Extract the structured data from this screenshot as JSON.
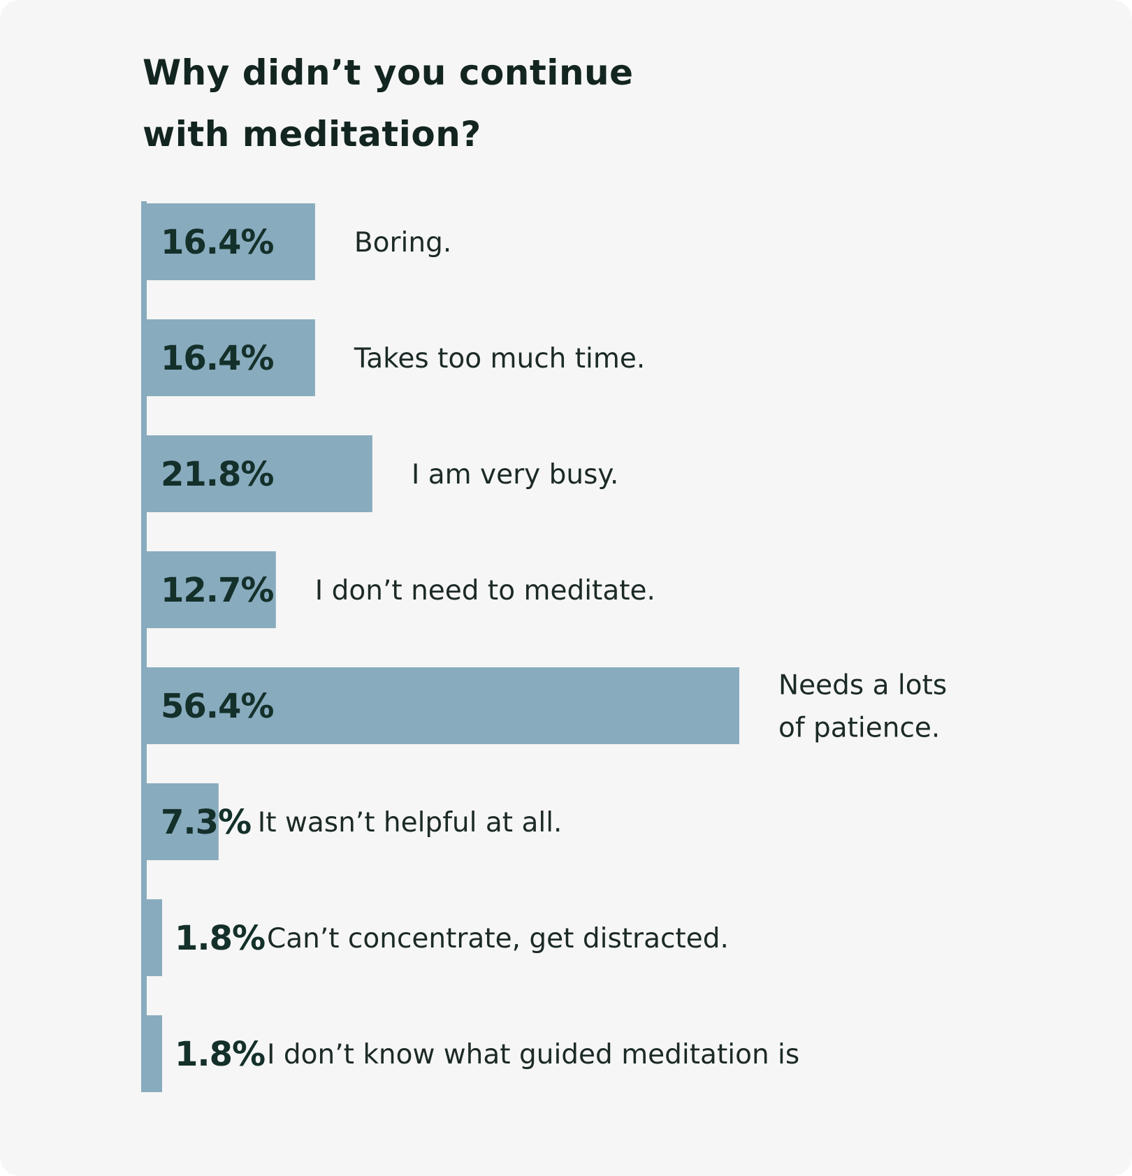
{
  "chart_data": {
    "type": "bar",
    "orientation": "horizontal",
    "title": "Why didn’t you continue with meditation?",
    "title_lines": [
      "Why didn’t you continue",
      "with meditation?"
    ],
    "value_suffix": "%",
    "categories": [
      "Boring.",
      "Takes too much time.",
      "I am very busy.",
      "I don’t need to meditate.",
      "Needs a lots of patience.",
      "It wasn’t helpful at all.",
      "Can’t concentrate, get distracted.",
      "I don’t know what guided meditation is"
    ],
    "category_lines": [
      [
        "Boring."
      ],
      [
        "Takes too much time."
      ],
      [
        "I am very busy."
      ],
      [
        "I don’t need to meditate."
      ],
      [
        "Needs a lots",
        "of patience."
      ],
      [
        "It wasn’t helpful at all."
      ],
      [
        "Can’t concentrate, get distracted."
      ],
      [
        "I don’t know what guided meditation is"
      ]
    ],
    "values": [
      16.4,
      16.4,
      21.8,
      12.7,
      56.4,
      7.3,
      1.8,
      1.8
    ],
    "value_labels": [
      "16.4%",
      "16.4%",
      "21.8%",
      "12.7%",
      "56.4%",
      "7.3%",
      "1.8%",
      "1.8%"
    ],
    "xlim": [
      0,
      100
    ],
    "grid": false,
    "legend": "none",
    "colors": {
      "bar": "#88abbe",
      "axis": "#88abbe",
      "background": "#f6f6f6",
      "value_text": "#14302a",
      "label_text": "#1c2a27",
      "title_text": "#132520"
    }
  }
}
